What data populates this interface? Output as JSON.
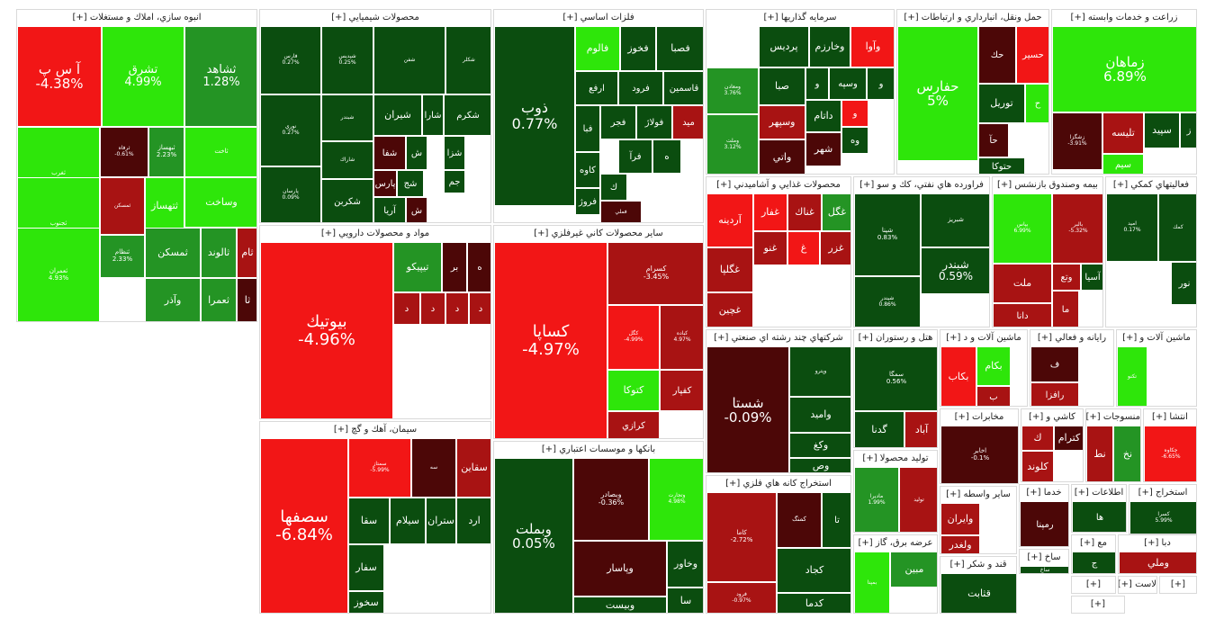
{
  "chart_data": {
    "type": "treemap",
    "colors": {
      "strong_up": "#2ee60a",
      "mid_up": "#249424",
      "dark_up": "#0b4d0f",
      "strong_down": "#f21616",
      "mid_down": "#a81313",
      "dark_down": "#4c0707"
    },
    "sectors": [
      {
        "name": "انبوه سازي، املاك و مستغلات [+]",
        "tiles": [
          {
            "symbol": "آ س پ",
            "change": "-4.38%"
          },
          {
            "symbol": "تشرق",
            "change": "4.99%"
          },
          {
            "symbol": "ثشاهد",
            "change": "1.28%"
          },
          {
            "symbol": "ثغرب",
            "change": "6.94%"
          },
          {
            "symbol": "ثرفاه",
            "change": "-0.61%"
          },
          {
            "symbol": "ثبهساز",
            "change": "2.23%"
          },
          {
            "symbol": "ثاخت",
            "change": ""
          },
          {
            "symbol": "ثجنوب",
            "change": "4.99%"
          },
          {
            "symbol": "ثمسكن",
            "change": ""
          },
          {
            "symbol": "ثتهساز",
            "change": ""
          },
          {
            "symbol": "وساخت",
            "change": ""
          },
          {
            "symbol": "ثعمران",
            "change": "4.93%"
          },
          {
            "symbol": "ثنظام",
            "change": "2.33%"
          },
          {
            "symbol": "ثمسكن",
            "change": ""
          },
          {
            "symbol": "ثالوند",
            "change": ""
          },
          {
            "symbol": "ثام",
            "change": ""
          },
          {
            "symbol": "وآذر",
            "change": ""
          },
          {
            "symbol": "ثعمرا",
            "change": ""
          },
          {
            "symbol": "ثا",
            "change": ""
          }
        ]
      },
      {
        "name": "محصولات شيميايي [+]",
        "tiles": [
          {
            "symbol": "فارس",
            "change": "0.27%"
          },
          {
            "symbol": "شپديس",
            "change": "0.25%"
          },
          {
            "symbol": "شفن",
            "change": ""
          },
          {
            "symbol": "شكلر",
            "change": ""
          },
          {
            "symbol": "شيران",
            "change": ""
          },
          {
            "symbol": "شارا",
            "change": ""
          },
          {
            "symbol": "شكرم",
            "change": ""
          },
          {
            "symbol": "نوري",
            "change": "0.27%"
          },
          {
            "symbol": "شبندر",
            "change": ""
          },
          {
            "symbol": "شفا",
            "change": ""
          },
          {
            "symbol": "ش",
            "change": ""
          },
          {
            "symbol": "شزا",
            "change": ""
          },
          {
            "symbol": "پارس",
            "change": ""
          },
          {
            "symbol": "شج",
            "change": ""
          },
          {
            "symbol": "جم",
            "change": ""
          },
          {
            "symbol": "پارسان",
            "change": "0.09%"
          },
          {
            "symbol": "شاراك",
            "change": ""
          },
          {
            "symbol": "آريا",
            "change": ""
          },
          {
            "symbol": "شكربن",
            "change": ""
          },
          {
            "symbol": "ش",
            "change": ""
          }
        ]
      },
      {
        "name": "فلزات اساسي [+]",
        "tiles": [
          {
            "symbol": "ذوب",
            "change": "0.77%"
          },
          {
            "symbol": "فالوم",
            "change": ""
          },
          {
            "symbol": "فخوز",
            "change": ""
          },
          {
            "symbol": "فصبا",
            "change": ""
          },
          {
            "symbol": "ارفع",
            "change": ""
          },
          {
            "symbol": "فرود",
            "change": ""
          },
          {
            "symbol": "قاسمين",
            "change": ""
          },
          {
            "symbol": "فبا",
            "change": ""
          },
          {
            "symbol": "فجر",
            "change": ""
          },
          {
            "symbol": "فولاژ",
            "change": ""
          },
          {
            "symbol": "ميد",
            "change": ""
          },
          {
            "symbol": "كاوه",
            "change": ""
          },
          {
            "symbol": "فرآ",
            "change": ""
          },
          {
            "symbol": "ه",
            "change": ""
          },
          {
            "symbol": "فروژ",
            "change": ""
          },
          {
            "symbol": "ك",
            "change": ""
          },
          {
            "symbol": "فملي",
            "change": ""
          }
        ]
      },
      {
        "name": "سرمايه گذاريها [+]",
        "tiles": [
          {
            "symbol": "پرديس",
            "change": ""
          },
          {
            "symbol": "وخارزم",
            "change": ""
          },
          {
            "symbol": "وآوا",
            "change": ""
          },
          {
            "symbol": "ومعادن",
            "change": "3.76%"
          },
          {
            "symbol": "صبا",
            "change": ""
          },
          {
            "symbol": "و",
            "change": ""
          },
          {
            "symbol": "وسپه",
            "change": ""
          },
          {
            "symbol": "و",
            "change": ""
          },
          {
            "symbol": "وسپهر",
            "change": ""
          },
          {
            "symbol": "داتام",
            "change": ""
          },
          {
            "symbol": "و",
            "change": ""
          },
          {
            "symbol": "وملت",
            "change": "3.12%"
          },
          {
            "symbol": "واتي",
            "change": ""
          },
          {
            "symbol": "شهر",
            "change": ""
          },
          {
            "symbol": "وه",
            "change": ""
          }
        ]
      },
      {
        "name": "حمل ونقل، انبارداري و ارتباطات [+]",
        "tiles": [
          {
            "symbol": "حفارس",
            "change": "5%"
          },
          {
            "symbol": "حك",
            "change": ""
          },
          {
            "symbol": "حسير",
            "change": ""
          },
          {
            "symbol": "توريل",
            "change": ""
          },
          {
            "symbol": "ح",
            "change": ""
          },
          {
            "symbol": "حآ",
            "change": ""
          },
          {
            "symbol": "حتوكا",
            "change": ""
          }
        ]
      },
      {
        "name": "زراعت و خدمات وابسته [+]",
        "tiles": [
          {
            "symbol": "زماهان",
            "change": "6.89%"
          },
          {
            "symbol": "زشگزا",
            "change": "-3.91%"
          },
          {
            "symbol": "تليسه",
            "change": ""
          },
          {
            "symbol": "سپيد",
            "change": ""
          },
          {
            "symbol": "ز",
            "change": ""
          },
          {
            "symbol": "سيم",
            "change": ""
          }
        ]
      },
      {
        "name": "مواد و محصولات دارويي [+]",
        "tiles": [
          {
            "symbol": "بيوتيك",
            "change": "-4.96%"
          },
          {
            "symbol": "تيپيكو",
            "change": ""
          },
          {
            "symbol": "بر",
            "change": ""
          },
          {
            "symbol": "ه",
            "change": ""
          },
          {
            "symbol": "د",
            "change": ""
          },
          {
            "symbol": "د",
            "change": ""
          },
          {
            "symbol": "د",
            "change": ""
          },
          {
            "symbol": "د",
            "change": ""
          }
        ]
      },
      {
        "name": "ساير محصولات كاني غيرفلزي [+]",
        "tiles": [
          {
            "symbol": "كساپا",
            "change": "-4.97%"
          },
          {
            "symbol": "كسرام",
            "change": "-3.45%"
          },
          {
            "symbol": "كگل",
            "change": "-4.99%"
          },
          {
            "symbol": "كباده",
            "change": "4.97%"
          },
          {
            "symbol": "كتوكا",
            "change": ""
          },
          {
            "symbol": "كفپار",
            "change": ""
          },
          {
            "symbol": "كرازي",
            "change": ""
          }
        ]
      },
      {
        "name": "سيمان، آهك و گچ [+]",
        "tiles": [
          {
            "symbol": "سصفها",
            "change": "-6.84%"
          },
          {
            "symbol": "سمتاز",
            "change": "-5.99%"
          },
          {
            "symbol": "سه",
            "change": ""
          },
          {
            "symbol": "سقاين",
            "change": ""
          },
          {
            "symbol": "سقا",
            "change": ""
          },
          {
            "symbol": "سيلام",
            "change": ""
          },
          {
            "symbol": "ستران",
            "change": ""
          },
          {
            "symbol": "ارد",
            "change": ""
          },
          {
            "symbol": "سفار",
            "change": ""
          },
          {
            "symbol": "سخوز",
            "change": ""
          }
        ]
      },
      {
        "name": "بانكها و موسسات اعتباري [+]",
        "tiles": [
          {
            "symbol": "وبملت",
            "change": "0.05%"
          },
          {
            "symbol": "وبصادر",
            "change": "-0.36%"
          },
          {
            "symbol": "وتجارت",
            "change": "4.98%"
          },
          {
            "symbol": "وپاسار",
            "change": ""
          },
          {
            "symbol": "وخاور",
            "change": ""
          },
          {
            "symbol": "وبيست",
            "change": ""
          },
          {
            "symbol": "سا",
            "change": ""
          }
        ]
      },
      {
        "name": "محصولات غذايي و آشاميدني [+]",
        "tiles": [
          {
            "symbol": "آردينه",
            "change": ""
          },
          {
            "symbol": "غفار",
            "change": ""
          },
          {
            "symbol": "غناك",
            "change": ""
          },
          {
            "symbol": "غگل",
            "change": ""
          },
          {
            "symbol": "غنو",
            "change": ""
          },
          {
            "symbol": "غ",
            "change": ""
          },
          {
            "symbol": "غزر",
            "change": ""
          },
          {
            "symbol": "غگلپا",
            "change": ""
          },
          {
            "symbol": "غچين",
            "change": ""
          }
        ]
      },
      {
        "name": "شركتهاي چند رشته اي صنعتي [+]",
        "tiles": [
          {
            "symbol": "شستا",
            "change": "-0.09%"
          },
          {
            "symbol": "وپترو",
            "change": ""
          },
          {
            "symbol": "وامید",
            "change": ""
          },
          {
            "symbol": "وكغ",
            "change": ""
          },
          {
            "symbol": "وص",
            "change": ""
          }
        ]
      },
      {
        "name": "استخراج كانه هاي فلزي [+]",
        "tiles": [
          {
            "symbol": "كاما",
            "change": "-2.72%"
          },
          {
            "symbol": "كمنگ",
            "change": ""
          },
          {
            "symbol": "تا",
            "change": ""
          },
          {
            "symbol": "فرود",
            "change": "-0.97%"
          },
          {
            "symbol": "كجاد",
            "change": ""
          },
          {
            "symbol": "كدما",
            "change": ""
          }
        ]
      },
      {
        "name": "فراورده هاي نفتي، كك و سو [+]",
        "tiles": [
          {
            "symbol": "شپنا",
            "change": "0.83%"
          },
          {
            "symbol": "شبريز",
            "change": ""
          },
          {
            "symbol": "شبندر",
            "change": "0.59%"
          },
          {
            "symbol": "شيندر",
            "change": "0.86%"
          }
        ]
      },
      {
        "name": "بيمه وصندوق بازنشس [+]",
        "tiles": [
          {
            "symbol": "بپاس",
            "change": "6.99%"
          },
          {
            "symbol": "بالبر",
            "change": "-5.32%"
          },
          {
            "symbol": "ملت",
            "change": ""
          },
          {
            "symbol": "وتع",
            "change": ""
          },
          {
            "symbol": "آسيا",
            "change": ""
          },
          {
            "symbol": "دانا",
            "change": ""
          },
          {
            "symbol": "ما",
            "change": ""
          }
        ]
      },
      {
        "name": "فعاليتهاي كمكي [+]",
        "tiles": [
          {
            "symbol": "اميد",
            "change": "0.17%"
          },
          {
            "symbol": "كمك",
            "change": ""
          },
          {
            "symbol": "نور",
            "change": ""
          }
        ]
      },
      {
        "name": "هتل و رستوران [+]",
        "tiles": [
          {
            "symbol": "سمگا",
            "change": "0.56%"
          },
          {
            "symbol": "گدنا",
            "change": ""
          },
          {
            "symbol": "آباد",
            "change": ""
          }
        ]
      },
      {
        "name": "ماشين آلات و د [+]",
        "tiles": [
          {
            "symbol": "بكاب",
            "change": ""
          },
          {
            "symbol": "بكام",
            "change": ""
          },
          {
            "symbol": "ب",
            "change": ""
          }
        ]
      },
      {
        "name": "رايانه و فعالي [+]",
        "tiles": [
          {
            "symbol": "ف",
            "change": ""
          },
          {
            "symbol": "رافزا",
            "change": ""
          }
        ]
      },
      {
        "name": "ماشين آلات و [+]",
        "tiles": [
          {
            "symbol": "تكنو",
            "change": ""
          }
        ]
      },
      {
        "name": "توليد محصولا [+]",
        "tiles": [
          {
            "symbol": "مادیرا",
            "change": "1.99%"
          },
          {
            "symbol": "تولید",
            "change": ""
          }
        ]
      },
      {
        "name": "مخابرات [+]",
        "tiles": [
          {
            "symbol": "اخابر",
            "change": "-0.1%"
          }
        ]
      },
      {
        "name": "كاشي و [+]",
        "tiles": [
          {
            "symbol": "ك",
            "change": ""
          },
          {
            "symbol": "كترام",
            "change": ""
          },
          {
            "symbol": "كلوند",
            "change": ""
          }
        ]
      },
      {
        "name": "منسوجات [+]",
        "tiles": [
          {
            "symbol": "نط",
            "change": ""
          },
          {
            "symbol": "نخ",
            "change": ""
          }
        ]
      },
      {
        "name": "انتشا [+]",
        "tiles": [
          {
            "symbol": "چكاوه",
            "change": "-6.65%"
          }
        ]
      },
      {
        "name": "ساير واسطه [+]",
        "tiles": [
          {
            "symbol": "وايران",
            "change": ""
          },
          {
            "symbol": "ولغدر",
            "change": ""
          }
        ]
      },
      {
        "name": "خدما [+]",
        "tiles": [
          {
            "symbol": "رمپنا",
            "change": ""
          }
        ]
      },
      {
        "name": "اطلاعات [+]",
        "tiles": [
          {
            "symbol": "ها",
            "change": ""
          }
        ]
      },
      {
        "name": "استخراج [+]",
        "tiles": [
          {
            "symbol": "كسرا",
            "change": "5.99%"
          }
        ]
      },
      {
        "name": "عرضه برق، گاز [+]",
        "tiles": [
          {
            "symbol": "بمپنا",
            "change": ""
          },
          {
            "symbol": "مبين",
            "change": ""
          }
        ]
      },
      {
        "name": "قند و شكر [+]",
        "tiles": [
          {
            "symbol": "قثابت",
            "change": ""
          }
        ]
      },
      {
        "name": "ساخ [+]",
        "tiles": [
          {
            "symbol": "ساخ",
            "change": ""
          }
        ]
      },
      {
        "name": "مع [+]",
        "tiles": [
          {
            "symbol": "ج",
            "change": ""
          }
        ]
      },
      {
        "name": "دبا [+]",
        "tiles": [
          {
            "symbol": "وملي",
            "change": ""
          }
        ]
      },
      {
        "name": "[+]",
        "tiles": []
      },
      {
        "name": "لاست [+]",
        "tiles": []
      },
      {
        "name": "[+]",
        "tiles": []
      },
      {
        "name": "[+]",
        "tiles": []
      }
    ]
  }
}
